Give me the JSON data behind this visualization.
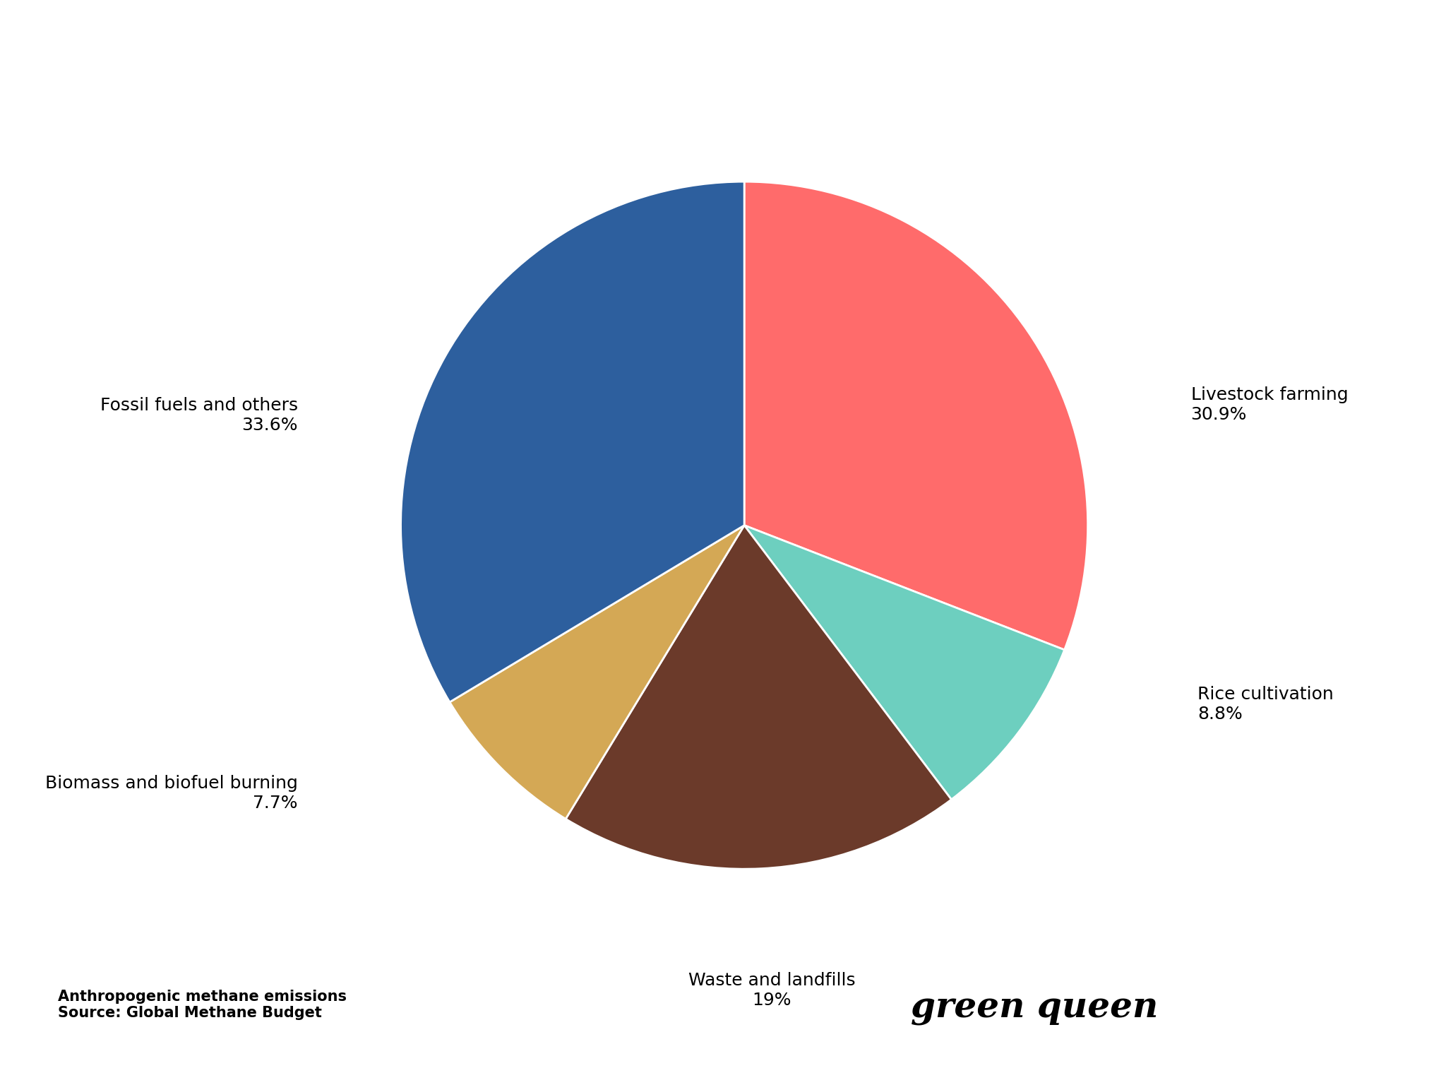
{
  "slices": [
    {
      "label": "Livestock farming\n30.9%",
      "value": 30.9,
      "color": "#FF6B6B"
    },
    {
      "label": "Rice cultivation\n8.8%",
      "value": 8.8,
      "color": "#6DCFBF"
    },
    {
      "label": "Waste and landfills\n19%",
      "value": 19.0,
      "color": "#6B3A2A"
    },
    {
      "label": "Biomass and biofuel burning\n7.7%",
      "value": 7.7,
      "color": "#D4A855"
    },
    {
      "label": "Fossil fuels and others\n33.6%",
      "value": 33.6,
      "color": "#2D5F9E"
    }
  ],
  "source_text": "Anthropogenic methane emissions\nSource: Global Methane Budget",
  "brand_text": "green queen",
  "bg_color": "#FFFFFF",
  "label_fontsize": 18,
  "source_fontsize": 15,
  "brand_fontsize": 36
}
